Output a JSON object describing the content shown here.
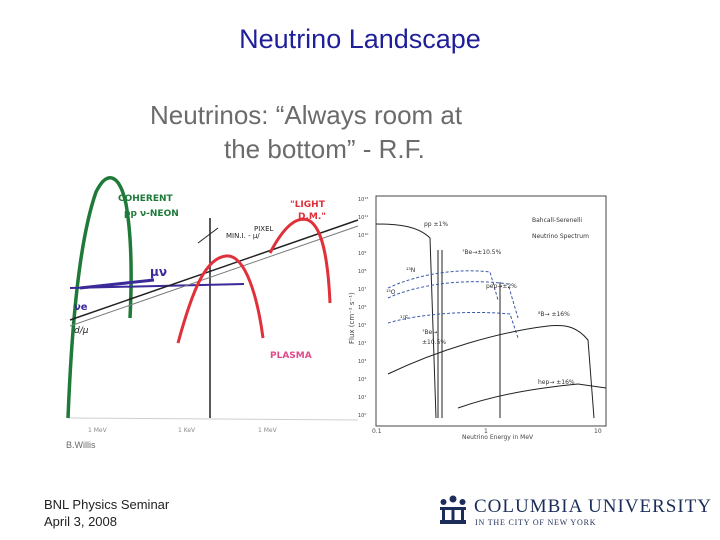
{
  "slide": {
    "title": "Neutrino Landscape",
    "credit": "B.Willis",
    "footer_line1": "BNL Physics Seminar",
    "footer_line2": "April 3, 2008"
  },
  "figure": {
    "headline_line1": "Neutrinos:  “Always room at",
    "headline_line2": "the bottom” - R.F.",
    "sketch": {
      "coherent_1": "COHERENT",
      "coherent_2": "pp ν-NEON",
      "min_pixel_1": "MIN.I. - μ/",
      "min_pixel_2": "PIXEL",
      "light_dm_1": "\"LIGHT",
      "light_dm_2": "D.M.\"",
      "plasma": "PLASMA",
      "mu_nu": "μν",
      "nu_e": "νe",
      "d_mu": "d/μ",
      "axis_ticks": [
        "1 MeV",
        "1 KeV",
        "1 MeV"
      ]
    },
    "solar": {
      "model_line1": "Bahcall-Serenelli",
      "model_line2": "Neutrino Spectrum",
      "pp_label": "pp ±1%",
      "be7_label": "⁷Be→±10.5%",
      "n13_label": "¹³N",
      "o15_label": "¹⁵O",
      "f17_label": "¹⁷F",
      "pep_label": "pep→±2%",
      "be7b_line1": "⁷Be→",
      "be7b_line2": "±10.5%",
      "b8_label": "⁸B→ ±16%",
      "hep_label": "hep→ ±16%",
      "ylabel": "Flux (cm⁻² s⁻¹)",
      "xlabel": "Neutrino Energy in MeV",
      "x_ticks": [
        "0.1",
        "1",
        "10"
      ],
      "y_ticks": [
        "10¹²",
        "10¹¹",
        "10¹⁰",
        "10⁹",
        "10⁸",
        "10⁷",
        "10⁶",
        "10⁵",
        "10⁴",
        "10³",
        "10²",
        "10¹",
        "10⁰"
      ]
    }
  },
  "logo": {
    "name": "COLUMBIA UNIVERSITY",
    "subtitle": "IN THE CITY OF NEW YORK"
  },
  "colors": {
    "title": "#1f1f9a",
    "green": "#1f7a3a",
    "red": "#e0303a",
    "purple": "#3a2a9a",
    "pink": "#e04a8a",
    "columbia": "#1c2d5a"
  }
}
